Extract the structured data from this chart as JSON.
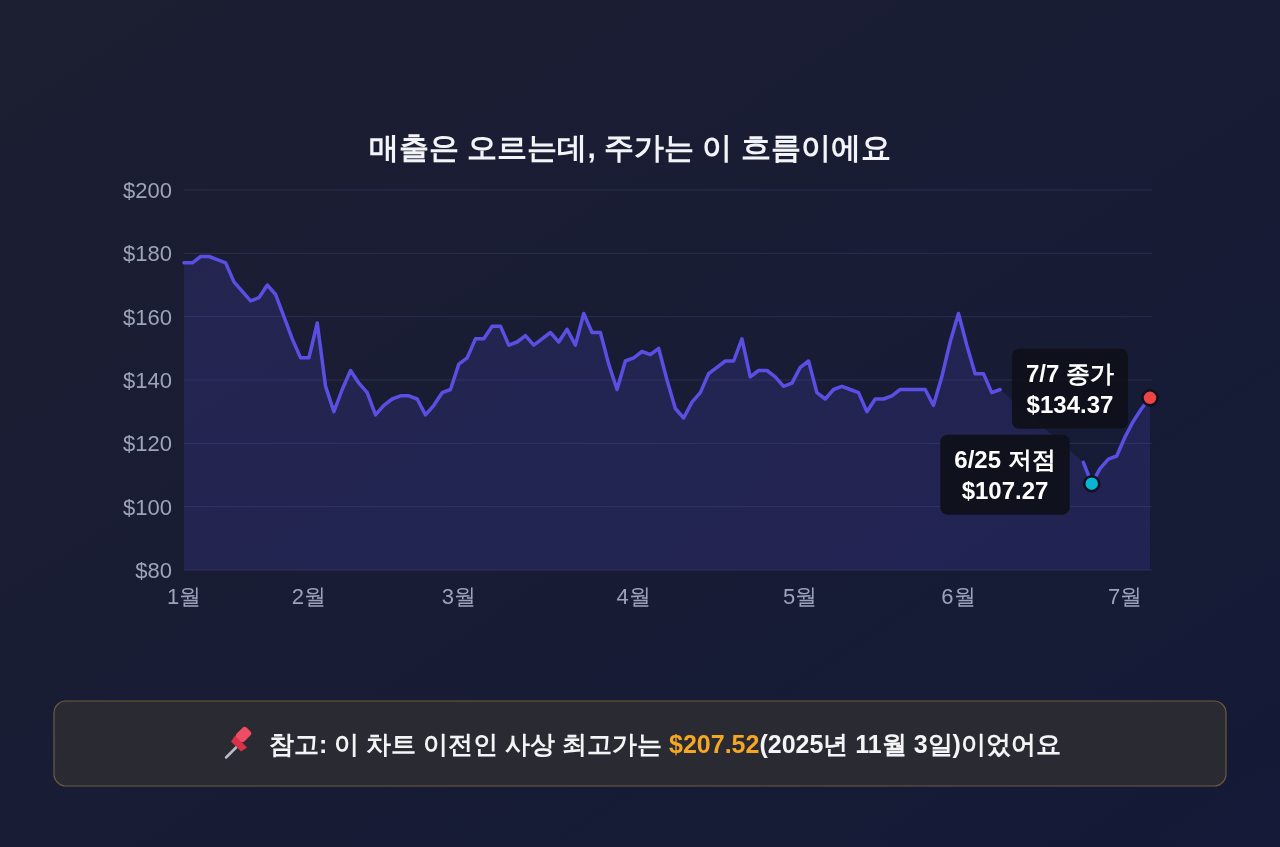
{
  "chart_data": {
    "type": "area",
    "title": "매출은 오르는데, 주가는 이 흐름이에요",
    "categories": [
      "1월",
      null,
      null,
      null,
      null,
      null,
      null,
      null,
      null,
      null,
      null,
      null,
      null,
      null,
      null,
      "2월",
      null,
      null,
      null,
      null,
      null,
      null,
      null,
      null,
      null,
      null,
      null,
      null,
      null,
      null,
      null,
      null,
      null,
      "3월",
      null,
      null,
      null,
      null,
      null,
      null,
      null,
      null,
      null,
      null,
      null,
      null,
      null,
      null,
      null,
      null,
      null,
      null,
      null,
      null,
      "4월",
      null,
      null,
      null,
      null,
      null,
      null,
      null,
      null,
      null,
      null,
      null,
      null,
      null,
      null,
      null,
      null,
      null,
      null,
      null,
      "5월",
      null,
      null,
      null,
      null,
      null,
      null,
      null,
      null,
      null,
      null,
      null,
      null,
      null,
      null,
      null,
      null,
      null,
      null,
      "6월",
      null,
      null,
      null,
      null,
      null,
      null,
      null,
      null,
      null,
      null,
      null,
      null,
      null,
      null,
      null,
      null,
      null,
      null,
      null,
      "7월",
      null,
      null,
      null
    ],
    "series": [
      {
        "color": "#5b4fe3",
        "values": [
          177,
          177,
          179,
          179,
          178,
          177,
          171,
          168,
          165,
          166,
          170,
          167,
          160,
          153,
          147,
          147,
          158,
          138,
          130,
          137,
          143,
          139,
          136,
          129,
          132,
          134,
          135,
          135,
          134,
          129,
          132,
          136,
          137,
          145,
          147,
          153,
          153,
          157,
          157,
          151,
          152,
          154,
          151,
          153,
          155,
          152,
          156,
          151,
          161,
          155,
          155,
          145,
          137,
          146,
          147,
          149,
          148,
          150,
          140,
          131,
          128,
          133,
          136,
          142,
          144,
          146,
          146,
          153,
          141,
          143,
          143,
          141,
          138,
          139,
          144,
          146,
          136,
          134,
          137,
          138,
          137,
          136,
          130,
          134,
          134,
          135,
          137,
          137,
          137,
          137,
          132,
          141,
          152,
          161,
          151,
          142,
          142,
          136,
          137,
          null,
          null,
          null,
          null,
          null,
          null,
          null,
          null,
          null,
          114,
          107.27,
          112,
          115,
          116,
          122,
          127,
          131,
          134.37
        ]
      },
      {
        "type": "scatter",
        "marker": "circle",
        "color": "#06b6d4",
        "values": [
          null,
          null,
          null,
          null,
          null,
          null,
          null,
          null,
          null,
          null,
          null,
          null,
          null,
          null,
          null,
          null,
          null,
          null,
          null,
          null,
          null,
          null,
          null,
          null,
          null,
          null,
          null,
          null,
          null,
          null,
          null,
          null,
          null,
          null,
          null,
          null,
          null,
          null,
          null,
          null,
          null,
          null,
          null,
          null,
          null,
          null,
          null,
          null,
          null,
          null,
          null,
          null,
          null,
          null,
          null,
          null,
          null,
          null,
          null,
          null,
          null,
          null,
          null,
          null,
          null,
          null,
          null,
          null,
          null,
          null,
          null,
          null,
          null,
          null,
          null,
          null,
          null,
          null,
          null,
          null,
          null,
          null,
          null,
          null,
          null,
          null,
          null,
          null,
          null,
          null,
          null,
          null,
          null,
          null,
          null,
          null,
          null,
          null,
          null,
          null,
          null,
          null,
          null,
          null,
          null,
          null,
          null,
          null,
          null,
          107.27,
          null,
          null,
          null,
          null,
          null,
          null,
          null
        ],
        "value_labels": [
          null,
          null,
          null,
          null,
          null,
          null,
          null,
          null,
          null,
          null,
          null,
          null,
          null,
          null,
          null,
          null,
          null,
          null,
          null,
          null,
          null,
          null,
          null,
          null,
          null,
          null,
          null,
          null,
          null,
          null,
          null,
          null,
          null,
          null,
          null,
          null,
          null,
          null,
          null,
          null,
          null,
          null,
          null,
          null,
          null,
          null,
          null,
          null,
          null,
          null,
          null,
          null,
          null,
          null,
          null,
          null,
          null,
          null,
          null,
          null,
          null,
          null,
          null,
          null,
          null,
          null,
          null,
          null,
          null,
          null,
          null,
          null,
          null,
          null,
          null,
          null,
          null,
          null,
          null,
          null,
          null,
          null,
          null,
          null,
          null,
          null,
          null,
          null,
          null,
          null,
          null,
          null,
          null,
          null,
          null,
          null,
          null,
          null,
          null,
          null,
          null,
          null,
          null,
          null,
          null,
          null,
          null,
          null,
          null,
          "6/25 저점\n$107.27",
          null,
          null,
          null,
          null,
          null,
          null,
          null
        ]
      },
      {
        "type": "scatter",
        "marker": "circle",
        "color": "#ef4444",
        "values": [
          null,
          null,
          null,
          null,
          null,
          null,
          null,
          null,
          null,
          null,
          null,
          null,
          null,
          null,
          null,
          null,
          null,
          null,
          null,
          null,
          null,
          null,
          null,
          null,
          null,
          null,
          null,
          null,
          null,
          null,
          null,
          null,
          null,
          null,
          null,
          null,
          null,
          null,
          null,
          null,
          null,
          null,
          null,
          null,
          null,
          null,
          null,
          null,
          null,
          null,
          null,
          null,
          null,
          null,
          null,
          null,
          null,
          null,
          null,
          null,
          null,
          null,
          null,
          null,
          null,
          null,
          null,
          null,
          null,
          null,
          null,
          null,
          null,
          null,
          null,
          null,
          null,
          null,
          null,
          null,
          null,
          null,
          null,
          null,
          null,
          null,
          null,
          null,
          null,
          null,
          null,
          null,
          null,
          null,
          null,
          null,
          null,
          null,
          null,
          null,
          null,
          null,
          null,
          null,
          null,
          null,
          null,
          null,
          null,
          null,
          null,
          null,
          null,
          null,
          null,
          null,
          134.37
        ],
        "value_labels": [
          null,
          null,
          null,
          null,
          null,
          null,
          null,
          null,
          null,
          null,
          null,
          null,
          null,
          null,
          null,
          null,
          null,
          null,
          null,
          null,
          null,
          null,
          null,
          null,
          null,
          null,
          null,
          null,
          null,
          null,
          null,
          null,
          null,
          null,
          null,
          null,
          null,
          null,
          null,
          null,
          null,
          null,
          null,
          null,
          null,
          null,
          null,
          null,
          null,
          null,
          null,
          null,
          null,
          null,
          null,
          null,
          null,
          null,
          null,
          null,
          null,
          null,
          null,
          null,
          null,
          null,
          null,
          null,
          null,
          null,
          null,
          null,
          null,
          null,
          null,
          null,
          null,
          null,
          null,
          null,
          null,
          null,
          null,
          null,
          null,
          null,
          null,
          null,
          null,
          null,
          null,
          null,
          null,
          null,
          null,
          null,
          null,
          null,
          null,
          null,
          null,
          null,
          null,
          null,
          null,
          null,
          null,
          null,
          null,
          null,
          null,
          null,
          null,
          null,
          null,
          null,
          "7/7 종가\n$134.37"
        ]
      }
    ],
    "ylim": [
      80,
      200
    ],
    "yticks": [
      {
        "value": 80,
        "label": "$80"
      },
      {
        "value": 100,
        "label": "$100"
      },
      {
        "value": 120,
        "label": "$120"
      },
      {
        "value": 140,
        "label": "$140"
      },
      {
        "value": 160,
        "label": "$160"
      },
      {
        "value": 180,
        "label": "$180"
      },
      {
        "value": 200,
        "label": "$200"
      }
    ],
    "grid": "y",
    "annotations": [
      "참고: 이 차트 이전인 사상 최고가는 **$207.52**(2025년 11월 3일)이었어요"
    ]
  }
}
